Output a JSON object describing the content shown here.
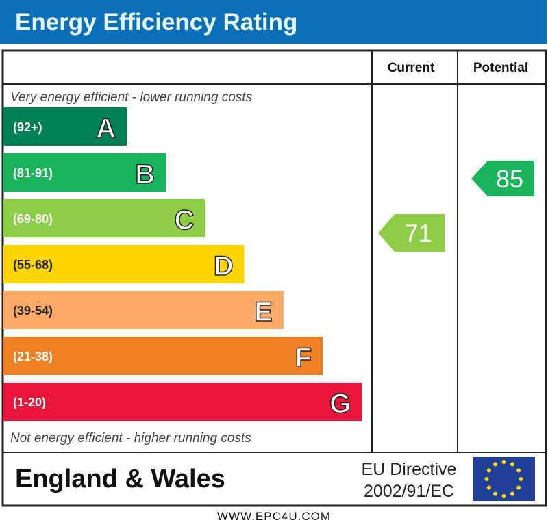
{
  "title": "Energy Efficiency Rating",
  "chart_data": {
    "type": "bar",
    "title": "Energy Efficiency Rating",
    "columns": {
      "current": "Current",
      "potential": "Potential"
    },
    "top_note": "Very energy efficient - lower running costs",
    "bottom_note": "Not energy efficient - higher running costs",
    "bands": [
      {
        "letter": "A",
        "range": "(92+)",
        "color": "#008054"
      },
      {
        "letter": "B",
        "range": "(81-91)",
        "color": "#19b459"
      },
      {
        "letter": "C",
        "range": "(69-80)",
        "color": "#8dce46"
      },
      {
        "letter": "D",
        "range": "(55-68)",
        "color": "#ffd500"
      },
      {
        "letter": "E",
        "range": "(39-54)",
        "color": "#fcaa65"
      },
      {
        "letter": "F",
        "range": "(21-38)",
        "color": "#ef8023"
      },
      {
        "letter": "G",
        "range": "(1-20)",
        "color": "#e9153b"
      }
    ],
    "current": {
      "value": "71",
      "band": "C"
    },
    "potential": {
      "value": "85",
      "band": "B"
    }
  },
  "region": "England & Wales",
  "directive": {
    "line1": "EU Directive",
    "line2": "2002/91/EC"
  },
  "footer": "WWW.EPC4U.COM"
}
